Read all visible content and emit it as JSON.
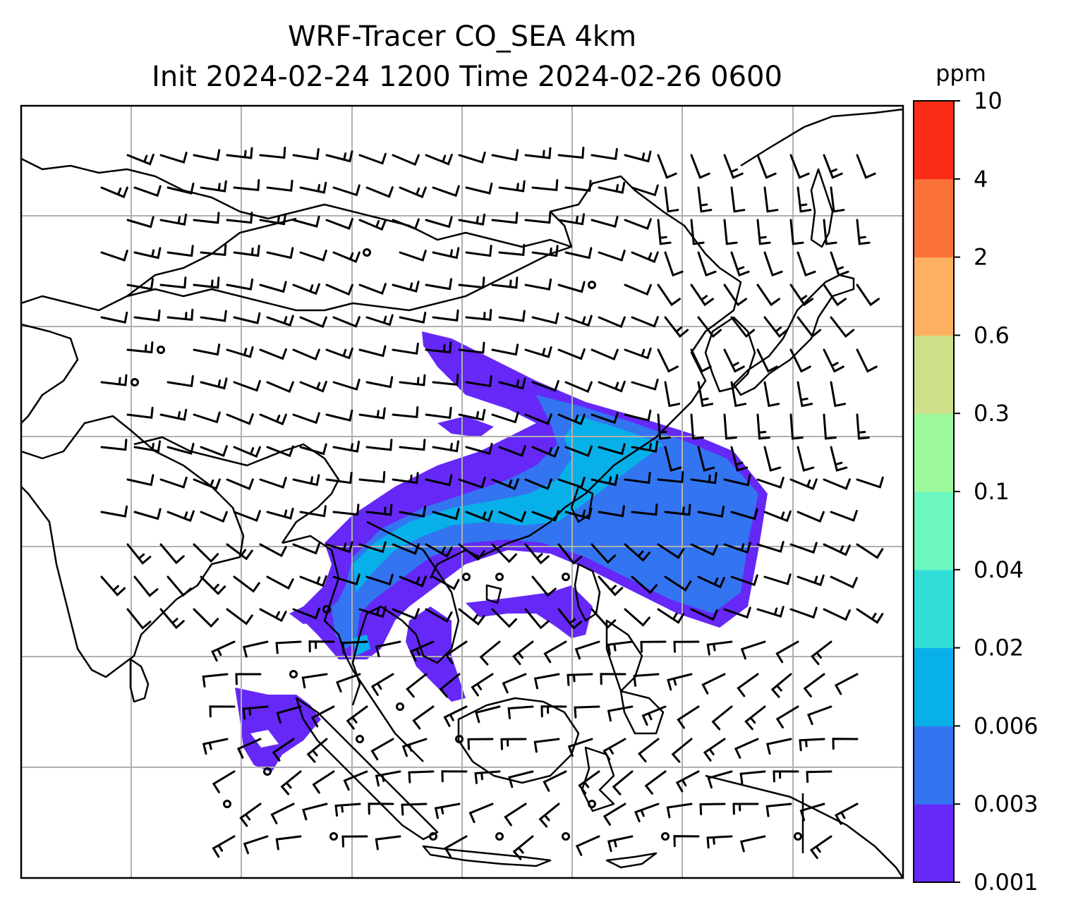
{
  "title_line1": "WRF-Tracer CO_SEA 4km",
  "title_line2": "Init 2024-02-24 1200 Time 2024-02-26 0600",
  "colorbar": {
    "unit": "ppm",
    "levels": [
      "0.001",
      "0.003",
      "0.006",
      "0.02",
      "0.04",
      "0.1",
      "0.3",
      "0.6",
      "2",
      "4",
      "10"
    ],
    "colors": [
      "#6528f7",
      "#3374f0",
      "#08b0ea",
      "#31ddd7",
      "#6cf8bf",
      "#9cf99c",
      "#cfe08a",
      "#fdaf62",
      "#fc7339",
      "#fb2d18"
    ]
  },
  "map": {
    "frame_color": "#000000",
    "grid_color": "#b0b0b0",
    "coast_color": "#000000",
    "barb_color": "#000000",
    "plume_colors": {
      "low": "#6528f7",
      "mid": "#3374f0",
      "high": "#08b0ea"
    }
  }
}
